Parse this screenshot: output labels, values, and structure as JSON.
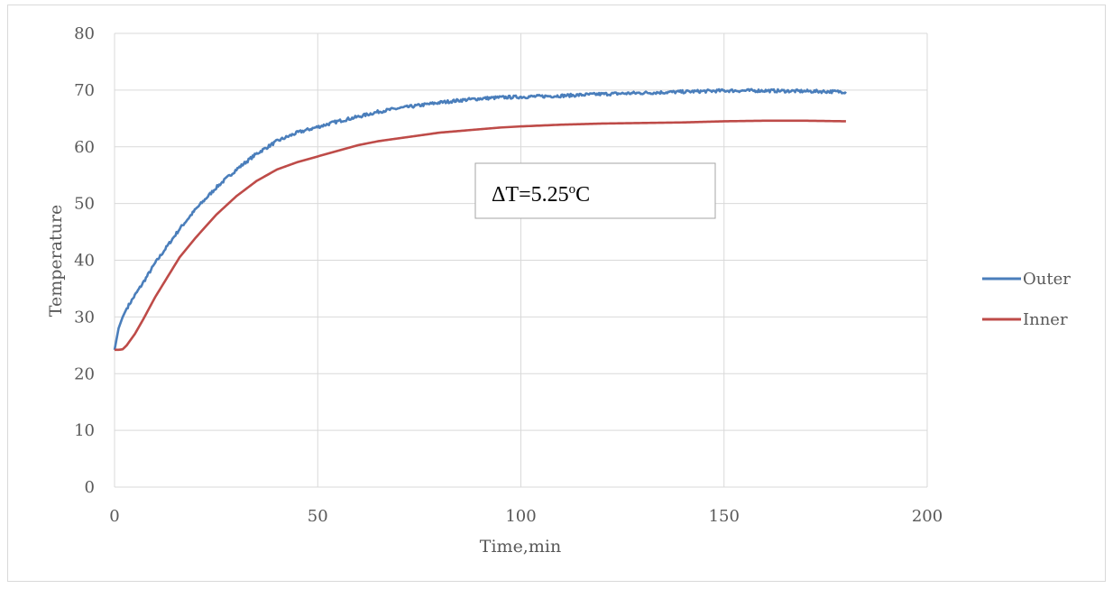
{
  "chart_data": {
    "type": "line",
    "title": "",
    "xlabel": "Time,min",
    "ylabel": "Temperature",
    "xlim": [
      0,
      200
    ],
    "ylim": [
      0,
      80
    ],
    "x_ticks": [
      0,
      50,
      100,
      150,
      200
    ],
    "y_ticks": [
      0,
      10,
      20,
      30,
      40,
      50,
      60,
      70,
      80
    ],
    "grid": true,
    "legend_position": "right",
    "annotation": {
      "prefix": "ΔT=5.25",
      "superscript": "o",
      "suffix": "C"
    },
    "series": [
      {
        "name": "Outer",
        "color": "#4a7ebb",
        "x": [
          0,
          1,
          2,
          3,
          5,
          7,
          10,
          13,
          16,
          20,
          25,
          30,
          35,
          40,
          45,
          50,
          55,
          60,
          65,
          70,
          75,
          80,
          85,
          90,
          95,
          100,
          110,
          120,
          130,
          140,
          150,
          160,
          170,
          180
        ],
        "y": [
          24.2,
          28.0,
          30.0,
          31.5,
          33.8,
          36.0,
          39.5,
          42.5,
          45.5,
          49.0,
          52.8,
          56.0,
          58.8,
          61.0,
          62.5,
          63.5,
          64.5,
          65.3,
          66.2,
          66.8,
          67.3,
          67.8,
          68.2,
          68.5,
          68.7,
          68.8,
          69.0,
          69.3,
          69.5,
          69.7,
          69.9,
          69.9,
          69.8,
          69.7
        ]
      },
      {
        "name": "Inner",
        "color": "#be4b48",
        "x": [
          0,
          1,
          2,
          3,
          5,
          7,
          10,
          13,
          16,
          20,
          25,
          30,
          35,
          40,
          45,
          50,
          55,
          60,
          65,
          70,
          75,
          80,
          85,
          90,
          95,
          100,
          110,
          120,
          130,
          140,
          150,
          160,
          170,
          180
        ],
        "y": [
          24.2,
          24.2,
          24.3,
          25.0,
          27.0,
          29.5,
          33.5,
          37.0,
          40.5,
          44.0,
          48.0,
          51.3,
          54.0,
          56.0,
          57.3,
          58.3,
          59.3,
          60.3,
          61.0,
          61.5,
          62.0,
          62.5,
          62.8,
          63.1,
          63.4,
          63.6,
          63.9,
          64.1,
          64.2,
          64.3,
          64.5,
          64.6,
          64.6,
          64.5
        ]
      }
    ]
  }
}
